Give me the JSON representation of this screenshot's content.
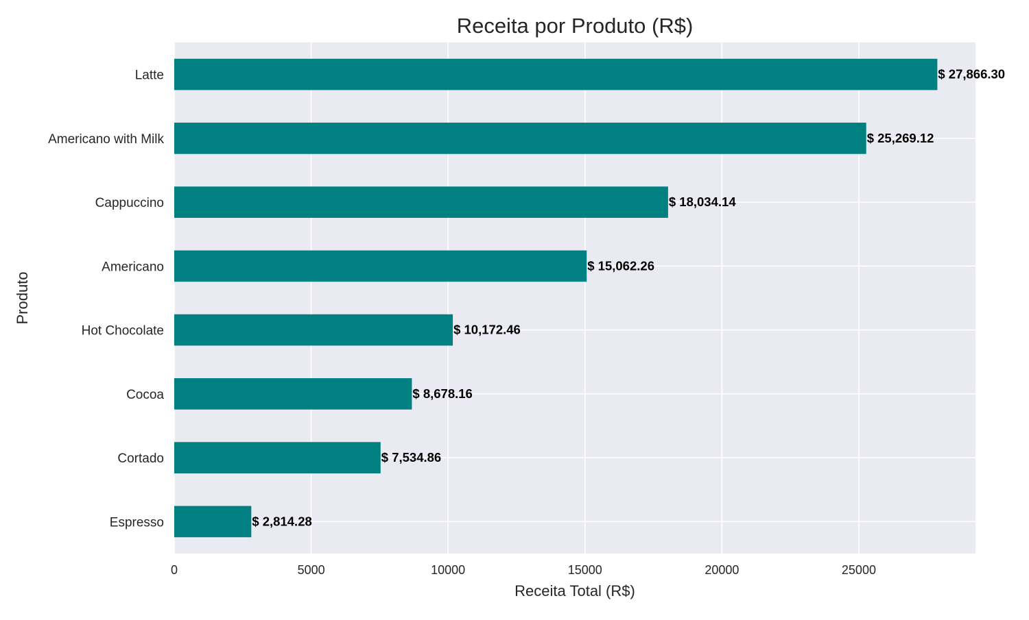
{
  "chart_data": {
    "type": "bar",
    "orientation": "horizontal",
    "title": "Receita por Produto (R$)",
    "xlabel": "Receita Total (R$)",
    "ylabel": "Produto",
    "categories": [
      "Latte",
      "Americano with Milk",
      "Cappuccino",
      "Americano",
      "Hot Chocolate",
      "Cocoa",
      "Cortado",
      "Espresso"
    ],
    "values": [
      27866.3,
      25269.12,
      18034.14,
      15062.26,
      10172.46,
      8678.16,
      7534.86,
      2814.28
    ],
    "data_labels": [
      "$ 27,866.30",
      "$ 25,269.12",
      "$ 18,034.14",
      "$ 15,062.26",
      "$ 10,172.46",
      "$ 8,678.16",
      "$ 7,534.86",
      "$ 2,814.28"
    ],
    "xticks": [
      0,
      5000,
      10000,
      15000,
      20000,
      25000
    ],
    "xtick_labels": [
      "0",
      "5000",
      "10000",
      "15000",
      "20000",
      "25000"
    ],
    "xlim": [
      0,
      29260
    ],
    "grid": true,
    "bar_color": "#008080",
    "plot_background": "#EAEAF2",
    "grid_color": "#FFFFFF"
  }
}
